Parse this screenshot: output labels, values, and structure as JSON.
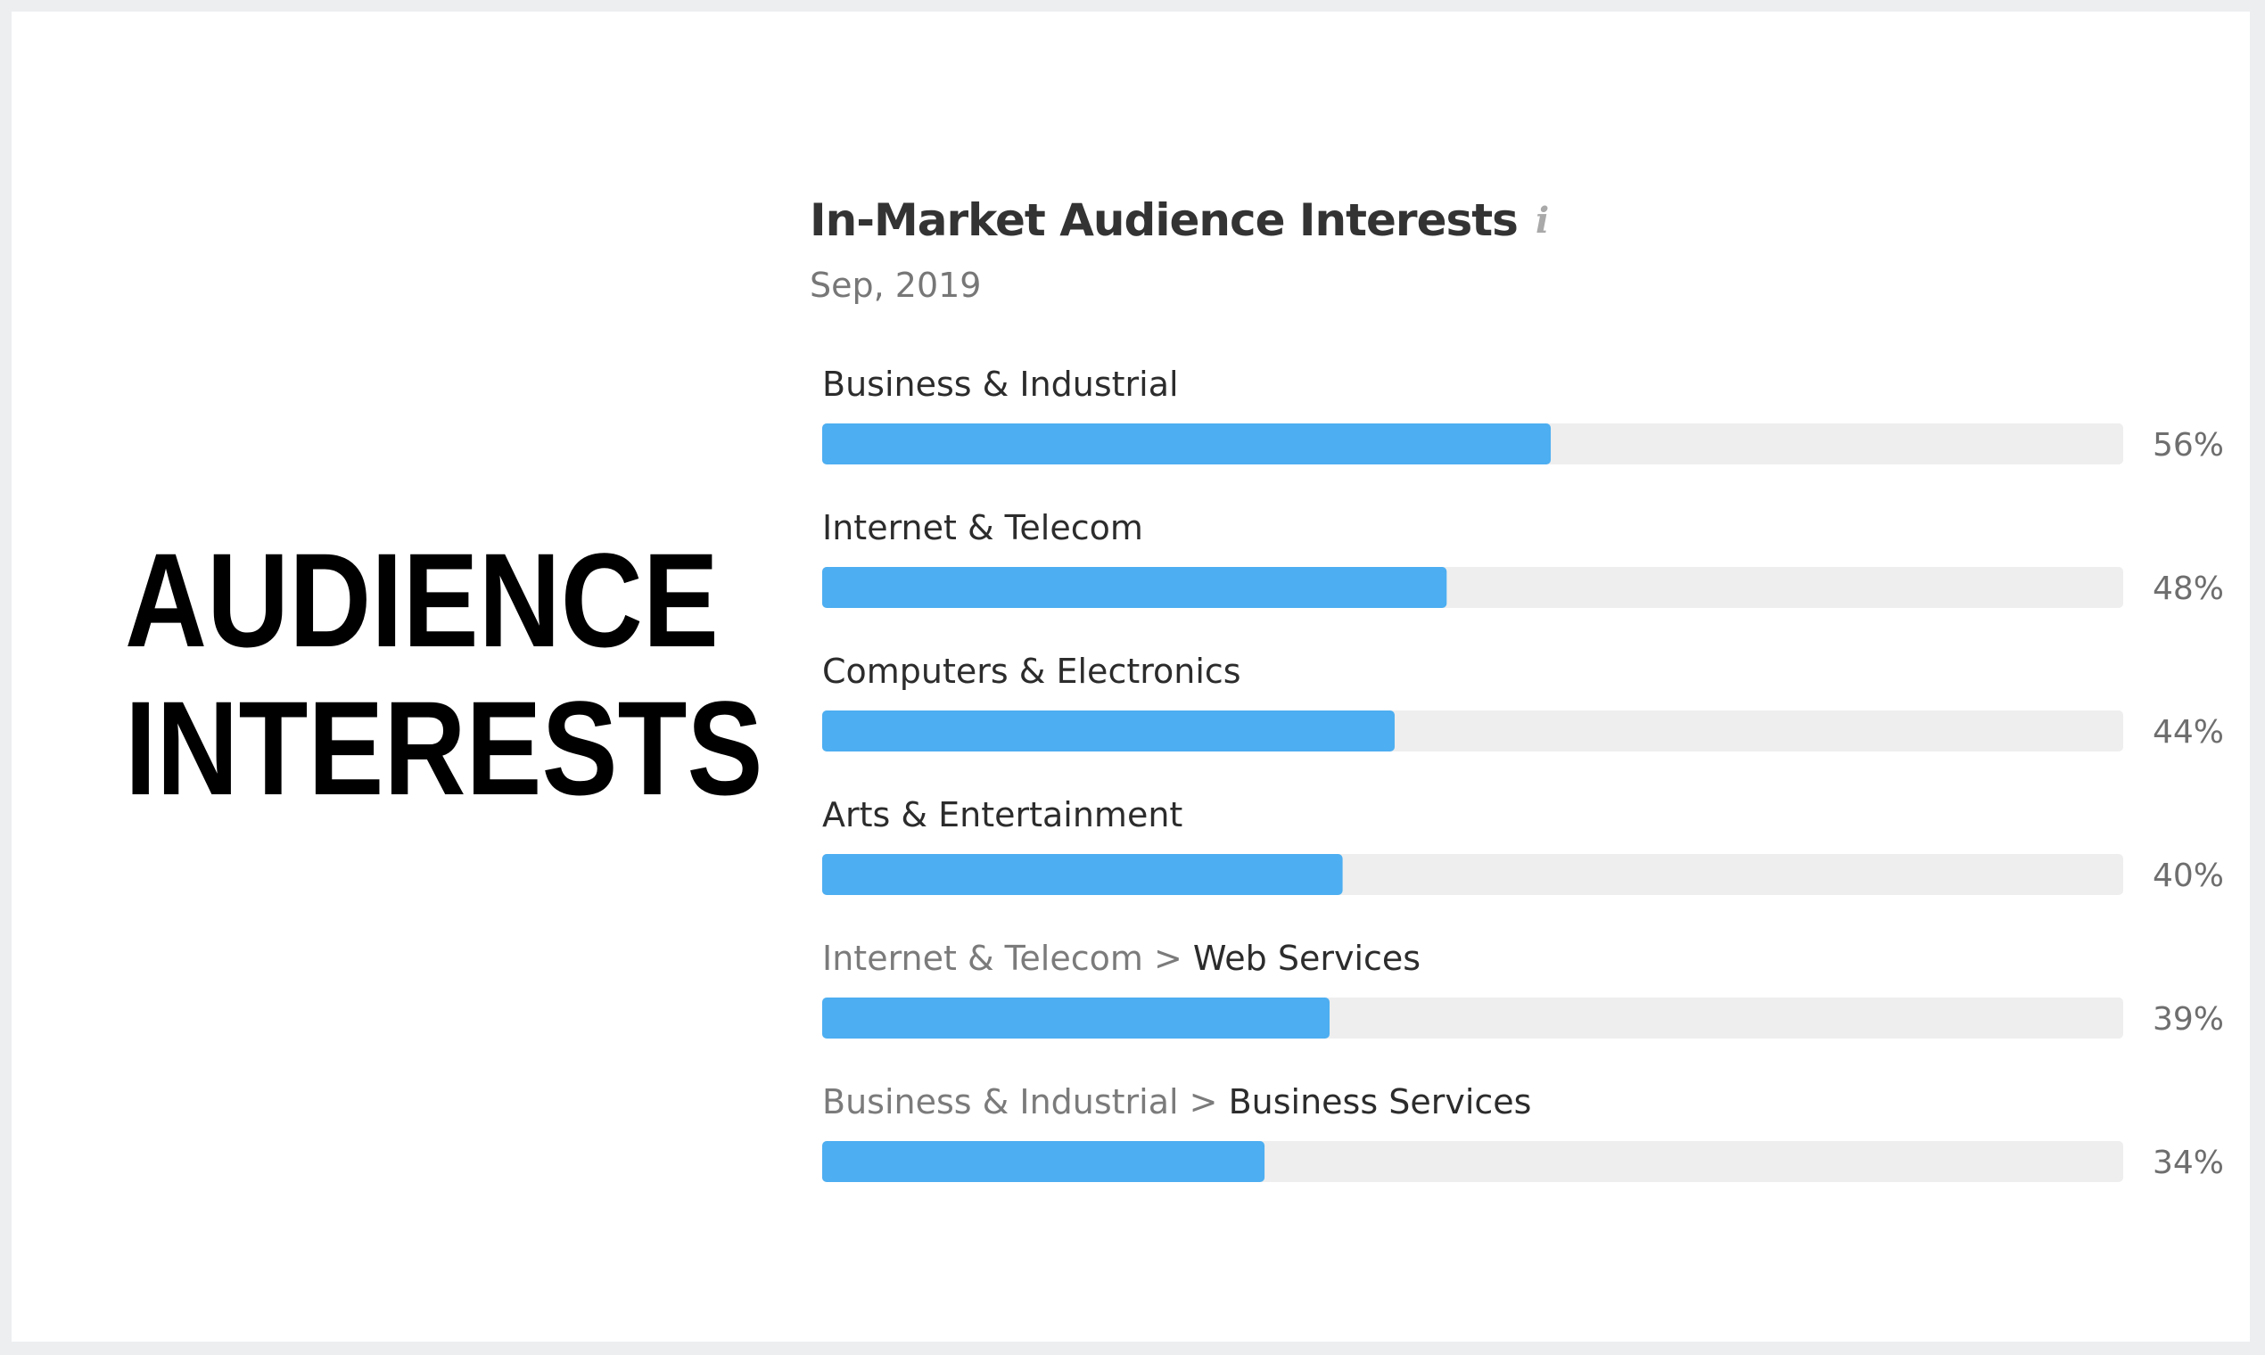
{
  "headline": {
    "line1": "AUDIENCE",
    "line2": "INTERESTS"
  },
  "colors": {
    "bar_fill": "#4daef1",
    "bar_track": "#eeeeee",
    "background": "#eceef0",
    "card": "#ffffff"
  },
  "chart_data": {
    "type": "bar",
    "orientation": "horizontal",
    "title": "In-Market Audience Interests",
    "title_icon": "info-icon",
    "subtitle": "Sep, 2019",
    "xlim": [
      0,
      100
    ],
    "value_suffix": "%",
    "grid": false,
    "categories": [
      {
        "parent": "",
        "name": "Business & Industrial",
        "value": 56
      },
      {
        "parent": "",
        "name": "Internet & Telecom",
        "value": 48
      },
      {
        "parent": "",
        "name": "Computers & Electronics",
        "value": 44
      },
      {
        "parent": "",
        "name": "Arts & Entertainment",
        "value": 40
      },
      {
        "parent": "Internet & Telecom",
        "name": "Web Services",
        "value": 39
      },
      {
        "parent": "Business & Industrial",
        "name": "Business Services",
        "value": 34
      }
    ]
  }
}
